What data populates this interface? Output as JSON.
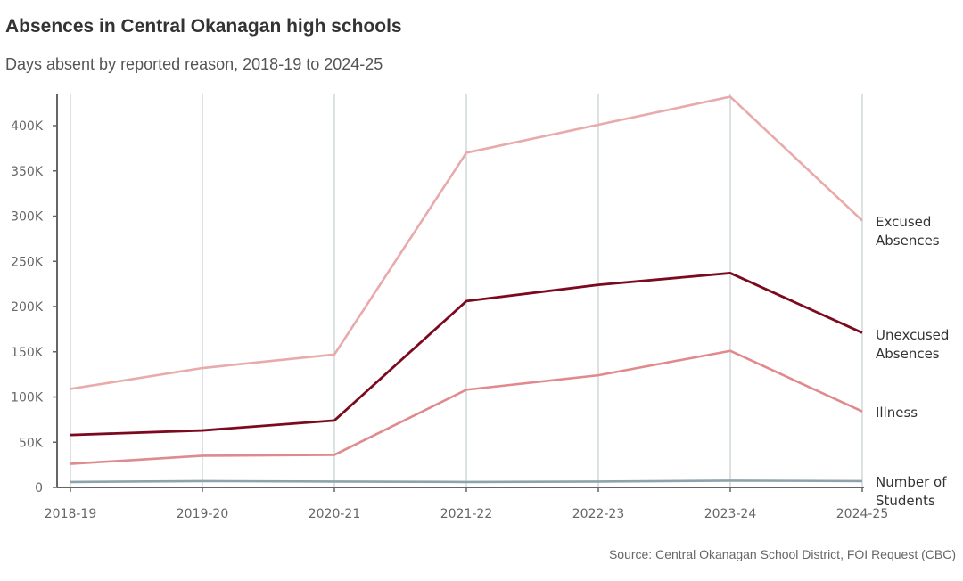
{
  "chart_data": {
    "type": "line",
    "title": "Absences in Central Okanagan high schools",
    "subtitle": "Days absent by reported reason, 2018-19 to 2024-25",
    "source": "Source: Central Okanagan School District, FOI Request (CBC)",
    "xlabel": "",
    "ylabel": "",
    "categories": [
      "2018-19",
      "2019-20",
      "2020-21",
      "2021-22",
      "2022-23",
      "2023-24",
      "2024-25"
    ],
    "ylim": [
      0,
      430000
    ],
    "yticks": [
      {
        "value": 0,
        "label": "0"
      },
      {
        "value": 50000,
        "label": "50K"
      },
      {
        "value": 100000,
        "label": "100K"
      },
      {
        "value": 150000,
        "label": "150K"
      },
      {
        "value": 200000,
        "label": "200K"
      },
      {
        "value": 250000,
        "label": "250K"
      },
      {
        "value": 300000,
        "label": "300K"
      },
      {
        "value": 350000,
        "label": "350K"
      },
      {
        "value": 400000,
        "label": "400K"
      }
    ],
    "grid": "vertical",
    "series": [
      {
        "name": "Excused Absences",
        "label_lines": [
          "Excused",
          "Absences"
        ],
        "color": "#e8aaaa",
        "values": [
          109000,
          132000,
          147000,
          370000,
          401000,
          432000,
          295000
        ]
      },
      {
        "name": "Unexcused Absences",
        "label_lines": [
          "Unexcused",
          "Absences"
        ],
        "color": "#7c0a1f",
        "values": [
          58000,
          63000,
          74000,
          206000,
          224000,
          237000,
          171000
        ]
      },
      {
        "name": "Illness",
        "label_lines": [
          "Illness"
        ],
        "color": "#e08a8e",
        "values": [
          26000,
          35000,
          36000,
          108000,
          124000,
          151000,
          84000
        ]
      },
      {
        "name": "Number of Students",
        "label_lines": [
          "Number of",
          "Students"
        ],
        "color": "#8fa3ad",
        "values": [
          6000,
          7000,
          6500,
          6000,
          6500,
          7500,
          7000
        ]
      }
    ]
  }
}
